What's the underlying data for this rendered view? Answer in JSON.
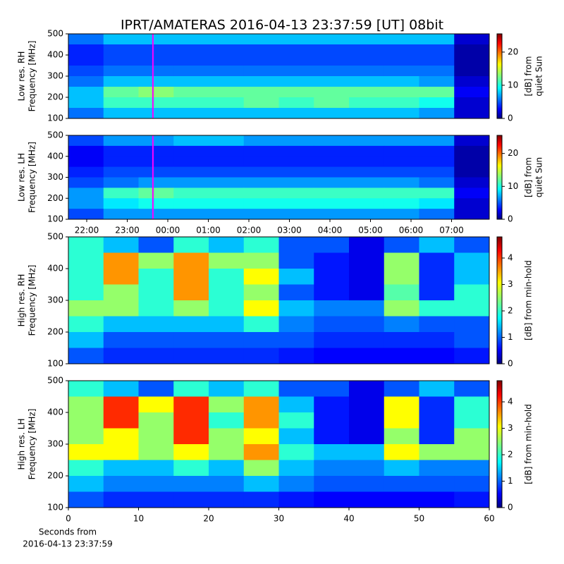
{
  "title": "IPRT/AMATERAS 2016-04-13 23:37:59 [UT]   08bit",
  "chart_data": [
    {
      "type": "heatmap",
      "ylabel": [
        "Low res. RH",
        "Frequency [MHz]"
      ],
      "xlim": [
        21.548,
        31.93
      ],
      "ylim": [
        100,
        500
      ],
      "yticks": [
        100,
        200,
        300,
        400,
        500
      ],
      "marker": {
        "x": 23.633,
        "color": "#ff00ff"
      },
      "colorbar": {
        "label": [
          "[dB] from",
          "quiet Sun"
        ],
        "zlim": [
          0,
          25.5
        ],
        "ticks": [
          0,
          10,
          20
        ]
      },
      "z": [
        [
          6,
          8,
          8,
          8,
          8,
          8,
          8,
          8,
          8,
          8,
          8,
          2
        ],
        [
          4,
          5,
          5,
          5,
          5,
          5,
          5,
          5,
          5,
          5,
          5,
          1
        ],
        [
          4,
          5,
          5,
          5,
          5,
          5,
          5,
          5,
          5,
          5,
          5,
          1
        ],
        [
          5,
          6,
          6,
          6,
          6,
          6,
          6,
          6,
          6,
          6,
          6,
          1
        ],
        [
          6,
          8,
          8,
          8,
          8,
          8,
          8,
          8,
          8,
          8,
          7,
          2
        ],
        [
          8,
          12,
          13,
          12,
          12,
          12,
          12,
          12,
          12,
          12,
          12,
          3
        ],
        [
          8,
          11,
          11,
          11,
          11,
          12,
          11,
          12,
          11,
          11,
          10,
          2
        ],
        [
          6,
          8,
          8,
          8,
          8,
          8,
          8,
          8,
          8,
          8,
          7,
          2
        ]
      ]
    },
    {
      "type": "heatmap",
      "ylabel": [
        "Low res. LH",
        "Frequency [MHz]"
      ],
      "xlim": [
        21.548,
        31.93
      ],
      "ylim": [
        100,
        500
      ],
      "yticks": [
        100,
        200,
        300,
        400,
        500
      ],
      "xticks": [
        {
          "value": 22,
          "label": "22:00"
        },
        {
          "value": 23,
          "label": "23:00"
        },
        {
          "value": 24,
          "label": "00:00"
        },
        {
          "value": 25,
          "label": "01:00"
        },
        {
          "value": 26,
          "label": "02:00"
        },
        {
          "value": 27,
          "label": "03:00"
        },
        {
          "value": 28,
          "label": "04:00"
        },
        {
          "value": 29,
          "label": "05:00"
        },
        {
          "value": 30,
          "label": "06:00"
        },
        {
          "value": 31,
          "label": "07:00"
        }
      ],
      "marker": {
        "x": 23.633,
        "color": "#ff00ff"
      },
      "colorbar": {
        "label": [
          "[dB] from",
          "quiet Sun"
        ],
        "zlim": [
          0,
          25.5
        ],
        "ticks": [
          0,
          10,
          20
        ]
      },
      "z": [
        [
          5,
          7,
          7,
          8,
          8,
          7,
          7,
          7,
          7,
          7,
          7,
          2
        ],
        [
          3,
          4,
          4,
          4,
          4,
          4,
          4,
          4,
          4,
          4,
          4,
          1
        ],
        [
          3,
          4,
          4,
          4,
          4,
          4,
          4,
          4,
          4,
          4,
          4,
          1
        ],
        [
          4,
          5,
          5,
          5,
          5,
          5,
          5,
          5,
          5,
          5,
          5,
          1
        ],
        [
          5,
          6,
          7,
          7,
          7,
          7,
          7,
          7,
          7,
          7,
          6,
          2
        ],
        [
          7,
          11,
          12,
          11,
          11,
          11,
          11,
          11,
          11,
          11,
          11,
          3
        ],
        [
          7,
          9,
          10,
          10,
          10,
          10,
          10,
          10,
          10,
          10,
          9,
          2
        ],
        [
          5,
          7,
          7,
          7,
          7,
          7,
          7,
          7,
          7,
          7,
          6,
          2
        ]
      ]
    },
    {
      "type": "heatmap",
      "ylabel": [
        "High res. RH",
        "Frequency [MHz]"
      ],
      "xlim": [
        0,
        60
      ],
      "ylim": [
        100,
        500
      ],
      "yticks": [
        100,
        200,
        300,
        400,
        500
      ],
      "colorbar": {
        "label": [
          "[dB] from min-hold"
        ],
        "zlim": [
          0,
          4.8
        ],
        "ticks": [
          0,
          1,
          2,
          3,
          4
        ]
      },
      "z": [
        [
          2,
          1.5,
          1,
          2,
          1.5,
          2,
          1,
          1,
          0.5,
          1,
          1.5,
          1
        ],
        [
          2,
          3.5,
          2.5,
          3.5,
          2.5,
          2.5,
          1,
          0.7,
          0.5,
          2.5,
          0.8,
          1.5
        ],
        [
          2,
          3.5,
          2,
          3.5,
          2,
          3,
          1.5,
          0.7,
          0.5,
          2.5,
          0.8,
          1.5
        ],
        [
          2,
          2.5,
          2,
          3.5,
          2,
          2.5,
          1,
          0.7,
          0.5,
          2.2,
          0.8,
          2
        ],
        [
          2.5,
          2.5,
          2,
          2.5,
          2,
          3,
          1.5,
          1.2,
          1.2,
          2.5,
          2,
          2
        ],
        [
          2,
          1.5,
          1.5,
          1.5,
          1.5,
          2,
          1.2,
          1,
          1,
          1.2,
          1,
          1
        ],
        [
          1.5,
          1,
          1,
          1,
          1,
          1,
          1,
          0.8,
          0.8,
          0.8,
          0.8,
          1
        ],
        [
          1,
          0.8,
          0.8,
          0.8,
          0.8,
          0.8,
          0.7,
          0.6,
          0.6,
          0.6,
          0.6,
          0.7
        ]
      ]
    },
    {
      "type": "heatmap",
      "ylabel": [
        "High res. LH",
        "Frequency [MHz]"
      ],
      "xlabel": [
        "Seconds from",
        "2016-04-13 23:37:59"
      ],
      "xlim": [
        0,
        60
      ],
      "ylim": [
        100,
        500
      ],
      "yticks": [
        100,
        200,
        300,
        400,
        500
      ],
      "xticks": [
        0,
        10,
        20,
        30,
        40,
        50,
        60
      ],
      "colorbar": {
        "label": [
          "[dB] from min-hold"
        ],
        "zlim": [
          0,
          4.8
        ],
        "ticks": [
          0,
          1,
          2,
          3,
          4
        ]
      },
      "z": [
        [
          2,
          1.5,
          1,
          2,
          1.5,
          2,
          1,
          1,
          0.5,
          1,
          1.5,
          1
        ],
        [
          2.5,
          4,
          3,
          4,
          2.5,
          3.5,
          1.5,
          0.7,
          0.5,
          3,
          0.8,
          2
        ],
        [
          2.5,
          4,
          2.5,
          4,
          2,
          3.5,
          2,
          0.7,
          0.5,
          3,
          0.8,
          2
        ],
        [
          2.5,
          3,
          2.5,
          4,
          2.5,
          3,
          1.5,
          0.7,
          0.5,
          2.5,
          0.8,
          2.5
        ],
        [
          3,
          3,
          2.5,
          3,
          2.5,
          3.5,
          2,
          1.5,
          1.5,
          3,
          2.5,
          2.5
        ],
        [
          2,
          1.5,
          1.5,
          2,
          1.5,
          2.5,
          1.5,
          1.2,
          1.2,
          1.5,
          1.2,
          1.2
        ],
        [
          1.5,
          1.2,
          1.2,
          1.2,
          1.2,
          1.5,
          1.2,
          1,
          1,
          1,
          1,
          1
        ],
        [
          1,
          0.8,
          0.8,
          0.8,
          0.8,
          0.8,
          0.7,
          0.6,
          0.6,
          0.6,
          0.6,
          0.7
        ]
      ]
    }
  ]
}
